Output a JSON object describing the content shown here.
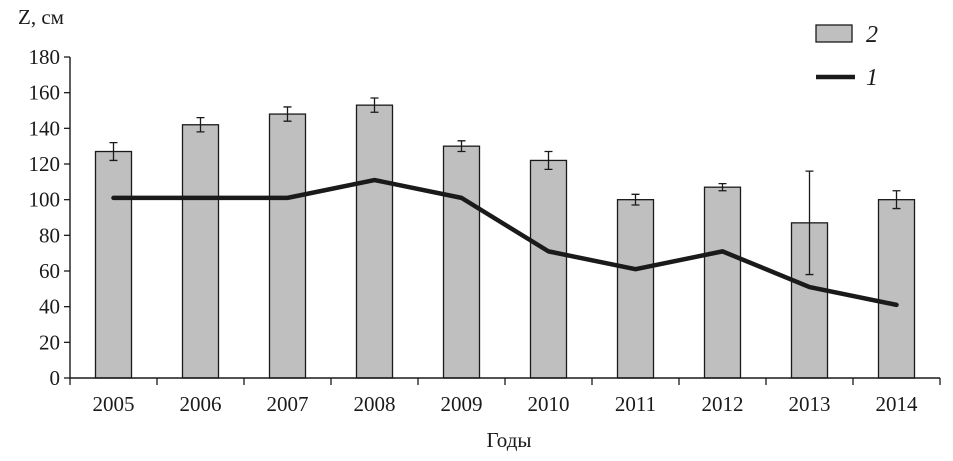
{
  "chart_data": {
    "type": "bar",
    "ylabel": "Z, см",
    "xlabel": "Годы",
    "ylim": [
      0,
      180
    ],
    "yticks": [
      0,
      20,
      40,
      60,
      80,
      100,
      120,
      140,
      160,
      180
    ],
    "categories": [
      "2005",
      "2006",
      "2007",
      "2008",
      "2009",
      "2010",
      "2011",
      "2012",
      "2013",
      "2014"
    ],
    "series": [
      {
        "name": "2",
        "type": "bar",
        "color": "#bfbfbf",
        "values": [
          127,
          142,
          148,
          153,
          130,
          122,
          100,
          107,
          87,
          100
        ],
        "error": [
          5,
          4,
          4,
          4,
          3,
          5,
          3,
          2,
          29,
          5
        ]
      },
      {
        "name": "1",
        "type": "line",
        "color": "#1a1a1a",
        "values": [
          101,
          101,
          101,
          111,
          101,
          71,
          61,
          71,
          51,
          41
        ]
      }
    ],
    "legend_position": "top-right",
    "grid": false
  }
}
